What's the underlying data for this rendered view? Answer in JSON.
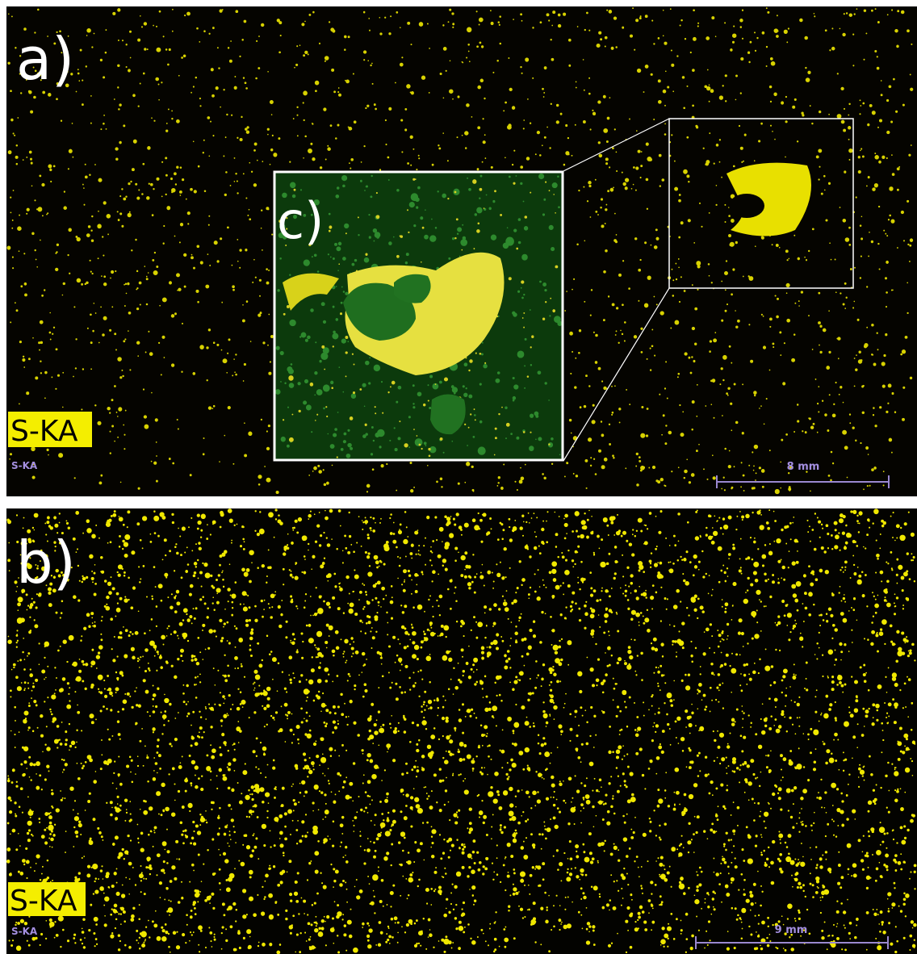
{
  "panels": [
    {
      "label": "a)",
      "element_tag": "S-KA",
      "element_caption": "S-KA",
      "scale_label": "8 mm"
    },
    {
      "label": "b)",
      "element_tag": "S-KA",
      "element_caption": "S-KA",
      "scale_label": "9 mm"
    }
  ],
  "inset": {
    "label": "c)"
  }
}
